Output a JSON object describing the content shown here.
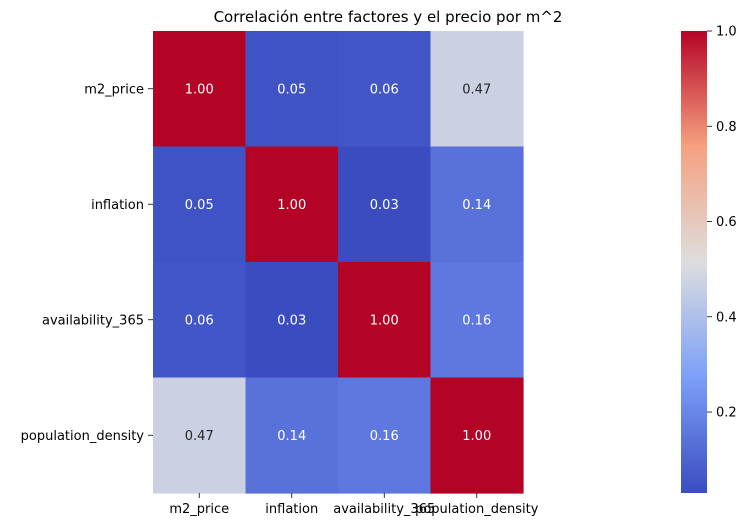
{
  "chart_data": {
    "type": "heatmap",
    "title": "Correlación entre factores y el precio por m^2",
    "row_labels": [
      "m2_price",
      "inflation",
      "availability_365",
      "population_density"
    ],
    "col_labels": [
      "m2_price",
      "inflation",
      "availability_365",
      "population_density"
    ],
    "values": [
      [
        1.0,
        0.05,
        0.06,
        0.47
      ],
      [
        0.05,
        1.0,
        0.03,
        0.14
      ],
      [
        0.06,
        0.03,
        1.0,
        0.16
      ],
      [
        0.47,
        0.14,
        0.16,
        1.0
      ]
    ],
    "annotations": [
      [
        "1.00",
        "0.05",
        "0.06",
        "0.47"
      ],
      [
        "0.05",
        "1.00",
        "0.03",
        "0.14"
      ],
      [
        "0.06",
        "0.03",
        "1.00",
        "0.16"
      ],
      [
        "0.47",
        "0.14",
        "0.16",
        "1.00"
      ]
    ],
    "colormap": "coolwarm",
    "vmin": 0.03,
    "vmax": 1.0,
    "colorbar": {
      "ticks": [
        0.2,
        0.4,
        0.6,
        0.8,
        1.0
      ],
      "tick_labels": [
        "0.2",
        "0.4",
        "0.6",
        "0.8",
        "1.0"
      ]
    },
    "xlabel": "",
    "ylabel": ""
  }
}
